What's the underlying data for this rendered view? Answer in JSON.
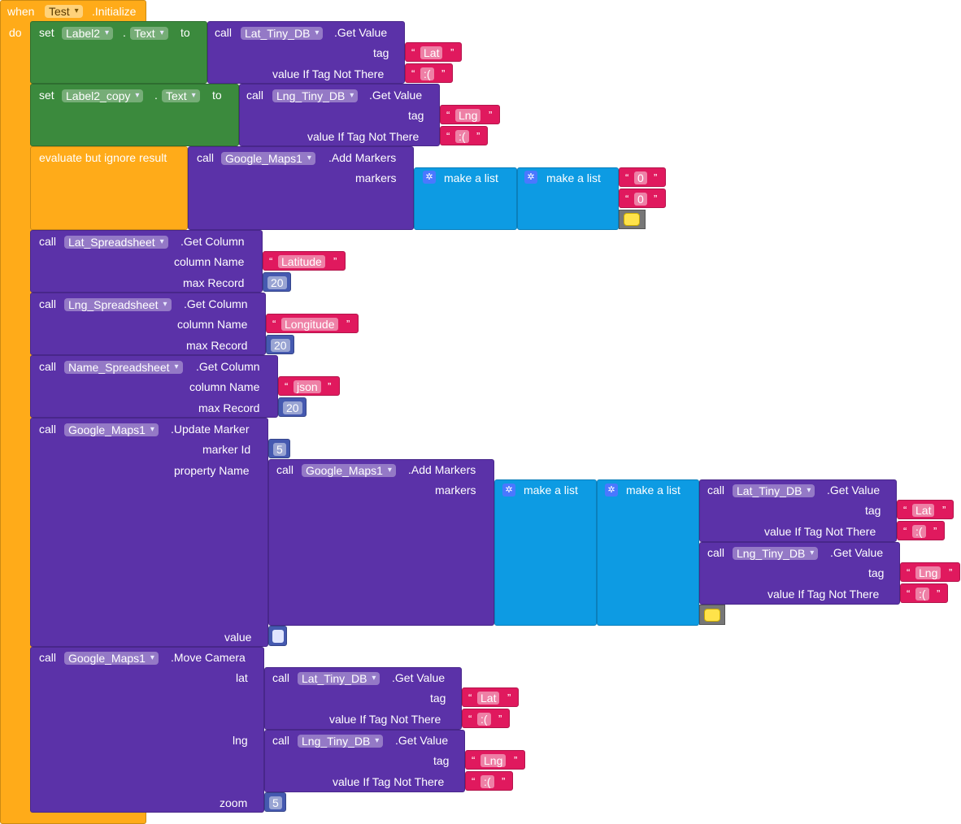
{
  "event": {
    "when": "when",
    "component": "Test",
    "method": ".Initialize",
    "do": "do"
  },
  "labels": {
    "set": "set",
    "to": "to",
    "call": "call",
    "dot": ".",
    "get_value": ".Get Value",
    "tag": "tag",
    "value_if": "value If Tag Not There",
    "evaluate": "evaluate but ignore result",
    "add_markers": ".Add Markers",
    "markers": "markers",
    "make_list": "make a list",
    "get_column": ".Get Column",
    "column_name": "column Name",
    "max_record": "max Record",
    "update_marker": ".Update Marker",
    "marker_id": "marker Id",
    "property_name": "property Name",
    "value": "value",
    "move_camera": ".Move Camera",
    "lat": "lat",
    "lng": "lng",
    "zoom": "zoom",
    "open_quote": "“",
    "close_quote": "”"
  },
  "components": {
    "label2": "Label2",
    "label2_copy": "Label2_copy",
    "text_prop": "Text",
    "lat_db": "Lat_Tiny_DB",
    "lng_db": "Lng_Tiny_DB",
    "maps": "Google_Maps1",
    "lat_sheet": "Lat_Spreadsheet",
    "lng_sheet": "Lng_Spreadsheet",
    "name_sheet": "Name_Spreadsheet"
  },
  "strings": {
    "lat": "Lat",
    "lng": "Lng",
    "sad": ":(",
    "zero": "0",
    "latitude": "Latitude",
    "longitude": "Longitude",
    "json": "json"
  },
  "numbers": {
    "max_record": "20",
    "marker_id": "5",
    "zoom": "5"
  },
  "icons": {
    "gear": "gear-icon"
  },
  "colors": {
    "event": "#ffab19",
    "set": "#3b8a3d",
    "procedure": "#5b32a8",
    "list": "#0d9be3",
    "text": "#e0195e",
    "math": "#4559b0"
  }
}
